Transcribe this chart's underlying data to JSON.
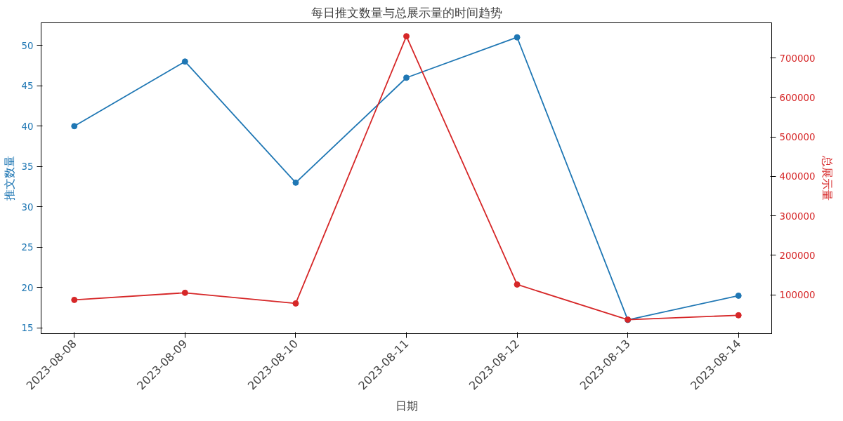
{
  "chart_data": {
    "type": "line",
    "title": "每日推文数量与总展示量的时间趋势",
    "xlabel": "日期",
    "ylabel": "推文数量",
    "y2label": "总展示量",
    "categories": [
      "2023-08-08",
      "2023-08-09",
      "2023-08-10",
      "2023-08-11",
      "2023-08-12",
      "2023-08-13",
      "2023-08-14"
    ],
    "series": [
      {
        "color": "#1f77b4",
        "values": [
          40,
          48,
          33,
          46,
          51,
          16,
          19
        ]
      },
      {
        "color": "#d62728",
        "axis": "y2",
        "values": [
          87000,
          105000,
          78000,
          755000,
          126000,
          37000,
          48000
        ]
      }
    ],
    "ylim": [
      14.3,
      52.8
    ],
    "yticks": [
      15,
      20,
      25,
      30,
      35,
      40,
      45,
      50
    ],
    "y2lim": [
      1500,
      789000
    ],
    "y2ticks": [
      100000,
      200000,
      300000,
      400000,
      500000,
      600000,
      700000
    ],
    "marker": "circle",
    "line_style": "solid"
  }
}
